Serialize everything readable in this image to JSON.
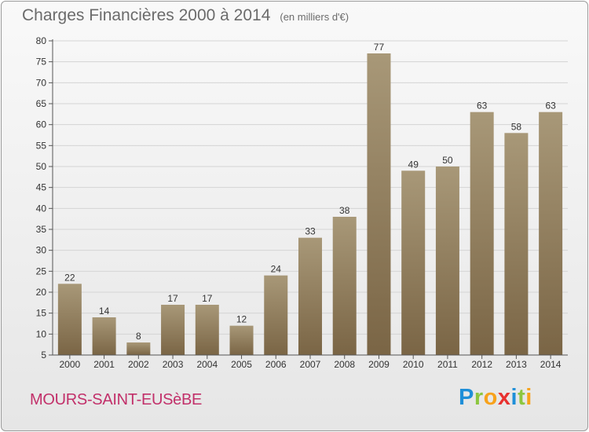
{
  "header": {
    "title": "Charges Financières 2000 à 2014",
    "subtitle": "(en milliers d'€)"
  },
  "footer": {
    "commune": "MOURS-SAINT-EUSèBE"
  },
  "logo": {
    "letters": [
      "P",
      "r",
      "o",
      "x",
      "i",
      "t",
      "i"
    ],
    "colors": [
      "#1f8fd8",
      "#8cc63f",
      "#f7a21b",
      "#e8312f",
      "#1f8fd8",
      "#8cc63f",
      "#f7a21b"
    ]
  },
  "chart_data": {
    "type": "bar",
    "title": "Charges Financières 2000 à 2014",
    "subtitle": "(en milliers d'€)",
    "categories": [
      "2000",
      "2001",
      "2002",
      "2003",
      "2004",
      "2005",
      "2006",
      "2007",
      "2008",
      "2009",
      "2010",
      "2011",
      "2012",
      "2013",
      "2014"
    ],
    "values": [
      22,
      14,
      8,
      17,
      17,
      12,
      24,
      33,
      38,
      77,
      49,
      50,
      63,
      58,
      63
    ],
    "value_labels": [
      "22",
      "14",
      "8",
      "17",
      "17",
      "12",
      "24",
      "33",
      "38",
      "77",
      "49",
      "50",
      "63",
      "58",
      "63"
    ],
    "ylim": [
      5,
      80
    ],
    "yticks": [
      5,
      10,
      15,
      20,
      25,
      30,
      35,
      40,
      45,
      50,
      55,
      60,
      65,
      70,
      75,
      80
    ],
    "ytick_labels": [
      "5",
      "10",
      "15",
      "20",
      "25",
      "30",
      "35",
      "40",
      "45",
      "50",
      "55",
      "60",
      "65",
      "70",
      "75",
      "80"
    ],
    "grid": true,
    "colors": {
      "bar_top": "#a89878",
      "bar_bottom": "#7a6545",
      "grid": "#d4d4d4",
      "axis": "#555555"
    }
  }
}
